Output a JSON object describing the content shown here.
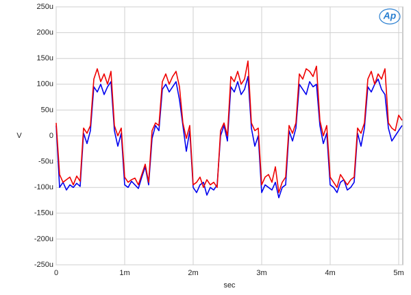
{
  "chart_data": {
    "type": "line",
    "logo": "Ap",
    "x_label": "sec",
    "y_label": "V",
    "xlim": [
      0,
      0.00506
    ],
    "ylim": [
      -0.00025,
      0.00025
    ],
    "xticks": [
      0,
      {
        "value": 0.001,
        "label": "1m"
      },
      {
        "value": 0.002,
        "label": "2m"
      },
      {
        "value": 0.003,
        "label": "3m"
      },
      {
        "value": 0.004,
        "label": "4m"
      },
      {
        "value": 0.005,
        "label": "5m"
      }
    ],
    "yticks": [
      {
        "value": -0.00025,
        "label": "-250u"
      },
      {
        "value": -0.0002,
        "label": "-200u"
      },
      {
        "value": -0.00015,
        "label": "-150u"
      },
      {
        "value": -0.0001,
        "label": "-100u"
      },
      {
        "value": -5e-05,
        "label": "-50u"
      },
      0,
      {
        "value": 5e-05,
        "label": "50u"
      },
      {
        "value": 0.0001,
        "label": "100u"
      },
      {
        "value": 0.00015,
        "label": "150u"
      },
      {
        "value": 0.0002,
        "label": "200u"
      },
      {
        "value": 0.00025,
        "label": "250u"
      }
    ],
    "grid": true,
    "x": [
      0,
      5e-05,
      0.0001,
      0.00015,
      0.0002,
      0.00025,
      0.0003,
      0.00035,
      0.0004,
      0.00045,
      0.0005,
      0.00055,
      0.0006,
      0.00065,
      0.0007,
      0.00075,
      0.0008,
      0.00085,
      0.0009,
      0.00095,
      0.001,
      0.00105,
      0.0011,
      0.00115,
      0.0012,
      0.00125,
      0.0013,
      0.00135,
      0.0014,
      0.00145,
      0.0015,
      0.00155,
      0.0016,
      0.00165,
      0.0017,
      0.00175,
      0.0018,
      0.00185,
      0.0019,
      0.00195,
      0.002,
      0.00205,
      0.0021,
      0.00215,
      0.0022,
      0.00225,
      0.0023,
      0.00235,
      0.0024,
      0.00245,
      0.0025,
      0.00255,
      0.0026,
      0.00265,
      0.0027,
      0.00275,
      0.0028,
      0.00285,
      0.0029,
      0.00295,
      0.003,
      0.00305,
      0.0031,
      0.00315,
      0.0032,
      0.00325,
      0.0033,
      0.00335,
      0.0034,
      0.00345,
      0.0035,
      0.00355,
      0.0036,
      0.00365,
      0.0037,
      0.00375,
      0.0038,
      0.00385,
      0.0039,
      0.00395,
      0.004,
      0.00405,
      0.0041,
      0.00415,
      0.0042,
      0.00425,
      0.0043,
      0.00435,
      0.0044,
      0.00445,
      0.0045,
      0.00455,
      0.0046,
      0.00465,
      0.0047,
      0.00475,
      0.0048,
      0.00485,
      0.0049,
      0.00495,
      0.005,
      0.00505
    ],
    "series": [
      {
        "color": "#0000ee",
        "values": [
          2e-05,
          -0.0001,
          -9e-05,
          -0.000105,
          -9.5e-05,
          -0.0001,
          -9.2e-05,
          -9.8e-05,
          5e-06,
          -1.5e-05,
          1e-05,
          9.5e-05,
          8.5e-05,
          0.0001,
          8e-05,
          9.5e-05,
          0.000105,
          1e-05,
          -2e-05,
          5e-06,
          -9.5e-05,
          -0.0001,
          -8.8e-05,
          -9.5e-05,
          -0.000102,
          -8e-05,
          -6e-05,
          -9.5e-05,
          -5e-06,
          2e-05,
          1e-05,
          9e-05,
          0.0001,
          8.5e-05,
          9.5e-05,
          0.000105,
          7e-05,
          2e-05,
          -3e-05,
          1e-05,
          -0.0001,
          -0.00011,
          -9.5e-05,
          -9e-05,
          -0.000115,
          -0.0001,
          -0.000105,
          -9.5e-05,
          0,
          2e-05,
          -1e-05,
          9.5e-05,
          8.5e-05,
          0.000105,
          8e-05,
          9e-05,
          0.000115,
          1.5e-05,
          -2e-05,
          0,
          -0.00011,
          -9.5e-05,
          -0.0001,
          -0.000105,
          -9e-05,
          -0.00012,
          -0.0001,
          -9.5e-05,
          1e-05,
          -1e-05,
          1.5e-05,
          0.0001,
          9e-05,
          8e-05,
          0.000105,
          9.5e-05,
          0.0001,
          2e-05,
          -1.5e-05,
          5e-06,
          -9.5e-05,
          -0.0001,
          -0.00011,
          -9e-05,
          -8.5e-05,
          -0.000105,
          -0.0001,
          -9e-05,
          5e-06,
          -2e-05,
          1.5e-05,
          9.5e-05,
          8.5e-05,
          0.0001,
          0.00011,
          9e-05,
          8e-05,
          1.5e-05,
          -1e-05,
          0,
          1e-05,
          2e-05
        ]
      },
      {
        "color": "#ee0000",
        "values": [
          2.5e-05,
          -7.5e-05,
          -9e-05,
          -8.5e-05,
          -8e-05,
          -9.5e-05,
          -7.8e-05,
          -8.8e-05,
          1.5e-05,
          5e-06,
          2e-05,
          0.00011,
          0.00013,
          0.000105,
          0.00012,
          0.0001,
          0.000125,
          2e-05,
          0,
          1.5e-05,
          -8e-05,
          -9e-05,
          -8.5e-05,
          -8.2e-05,
          -9.5e-05,
          -7.5e-05,
          -5.5e-05,
          -9e-05,
          1e-05,
          2.5e-05,
          2e-05,
          0.000105,
          0.00012,
          0.0001,
          0.000115,
          0.000125,
          9.5e-05,
          2.5e-05,
          -5e-06,
          2e-05,
          -9.5e-05,
          -9e-05,
          -8e-05,
          -0.0001,
          -8.5e-05,
          -9.5e-05,
          -9e-05,
          -0.0001,
          1e-05,
          2.5e-05,
          0,
          0.000115,
          0.000105,
          0.000125,
          0.0001,
          0.00011,
          0.000145,
          2.5e-05,
          1e-05,
          1.5e-05,
          -9.5e-05,
          -8e-05,
          -7.5e-05,
          -9e-05,
          -6e-05,
          -0.00011,
          -9e-05,
          -8e-05,
          2e-05,
          5e-06,
          2.5e-05,
          0.00012,
          0.00011,
          0.00013,
          0.000125,
          0.000115,
          0.000135,
          3e-05,
          0,
          2e-05,
          -8e-05,
          -9e-05,
          -0.0001,
          -7.5e-05,
          -8.5e-05,
          -9.5e-05,
          -8.5e-05,
          -8e-05,
          1.5e-05,
          5e-06,
          2.5e-05,
          0.00011,
          0.000125,
          0.0001,
          0.00012,
          0.00011,
          0.00013,
          2.5e-05,
          1.5e-05,
          1e-05,
          4e-05,
          3e-05
        ]
      }
    ]
  }
}
